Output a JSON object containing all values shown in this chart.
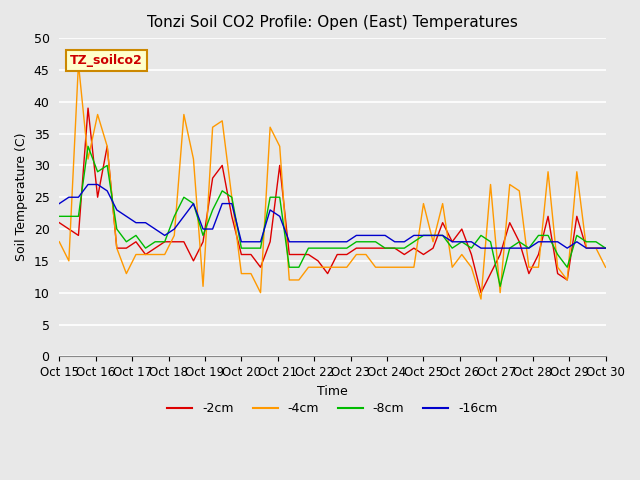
{
  "title": "Tonzi Soil CO2 Profile: Open (East) Temperatures",
  "xlabel": "Time",
  "ylabel": "Soil Temperature (C)",
  "ylim": [
    0,
    50
  ],
  "yticks": [
    0,
    5,
    10,
    15,
    20,
    25,
    30,
    35,
    40,
    45,
    50
  ],
  "xtick_labels": [
    "Oct 15",
    "Oct 16",
    "Oct 17",
    "Oct 18",
    "Oct 19",
    "Oct 20",
    "Oct 21",
    "Oct 22",
    "Oct 23",
    "Oct 24",
    "Oct 25",
    "Oct 26",
    "Oct 27",
    "Oct 28",
    "Oct 29",
    "Oct 30"
  ],
  "legend_label": "TZ_soilco2",
  "series_labels": [
    "-2cm",
    "-4cm",
    "-8cm",
    "-16cm"
  ],
  "series_colors": [
    "#dd0000",
    "#ff9900",
    "#00bb00",
    "#0000cc"
  ],
  "background_color": "#e8e8e8",
  "plot_bg_color": "#e8e8e8",
  "grid_color": "#ffffff",
  "t_2cm": [
    21,
    20,
    19,
    39,
    25,
    33,
    17,
    17,
    18,
    16,
    17,
    18,
    18,
    18,
    15,
    18,
    28,
    30,
    22,
    16,
    16,
    14,
    18,
    30,
    16,
    16,
    16,
    15,
    13,
    16,
    16,
    17,
    17,
    17,
    17,
    17,
    16,
    17,
    16,
    17,
    21,
    18,
    20,
    16,
    10,
    13,
    16,
    21,
    18,
    13,
    16,
    22,
    13,
    12,
    22,
    17,
    17,
    17
  ],
  "t_4cm": [
    18,
    15,
    46,
    31,
    38,
    33,
    17,
    13,
    16,
    16,
    16,
    16,
    19,
    38,
    31,
    11,
    36,
    37,
    25,
    13,
    13,
    10,
    36,
    33,
    12,
    12,
    14,
    14,
    14,
    14,
    14,
    16,
    16,
    14,
    14,
    14,
    14,
    14,
    24,
    18,
    24,
    14,
    16,
    14,
    9,
    27,
    10,
    27,
    26,
    14,
    14,
    29,
    14,
    12,
    29,
    17,
    17,
    14
  ],
  "t_8cm": [
    22,
    22,
    22,
    33,
    29,
    30,
    20,
    18,
    19,
    17,
    18,
    18,
    22,
    25,
    24,
    19,
    23,
    26,
    25,
    17,
    17,
    17,
    25,
    25,
    14,
    14,
    17,
    17,
    17,
    17,
    17,
    18,
    18,
    18,
    17,
    17,
    17,
    18,
    19,
    19,
    19,
    17,
    18,
    17,
    19,
    18,
    11,
    17,
    18,
    17,
    19,
    19,
    16,
    14,
    19,
    18,
    18,
    17
  ],
  "t_16cm": [
    24,
    25,
    25,
    27,
    27,
    26,
    23,
    22,
    21,
    21,
    20,
    19,
    20,
    22,
    24,
    20,
    20,
    24,
    24,
    18,
    18,
    18,
    23,
    22,
    18,
    18,
    18,
    18,
    18,
    18,
    18,
    19,
    19,
    19,
    19,
    18,
    18,
    19,
    19,
    19,
    19,
    18,
    18,
    18,
    17,
    17,
    17,
    17,
    17,
    17,
    18,
    18,
    18,
    17,
    18,
    17,
    17,
    17
  ]
}
